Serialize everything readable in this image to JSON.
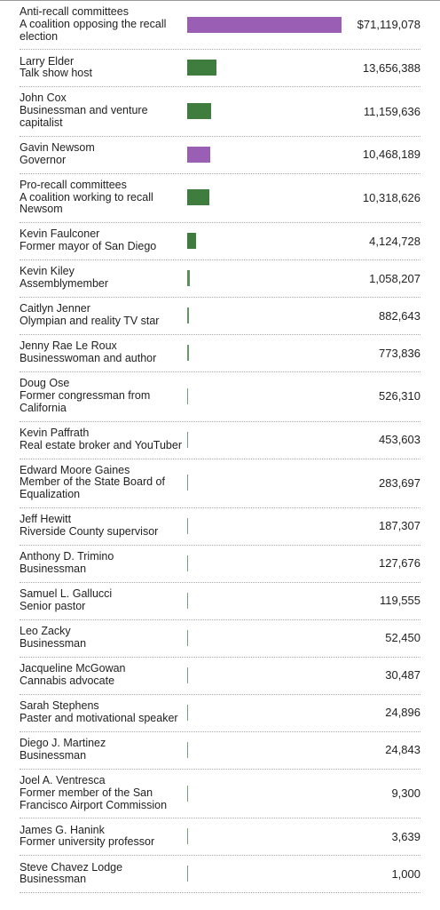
{
  "chart_data": {
    "type": "bar",
    "orientation": "horizontal",
    "categories": [
      "Anti-recall committees",
      "Larry Elder",
      "John Cox",
      "Gavin Newsom",
      "Pro-recall committees",
      "Kevin Faulconer",
      "Kevin Kiley",
      "Caitlyn Jenner",
      "Jenny Rae Le Roux",
      "Doug Ose",
      "Kevin Paffrath",
      "Edward Moore Gaines",
      "Jeff Hewitt",
      "Anthony D. Trimino",
      "Samuel L. Gallucci",
      "Leo Zacky",
      "Jacqueline McGowan",
      "Sarah Stephens",
      "Diego J. Martinez",
      "Joel A. Ventresca",
      "James G. Hanink",
      "Steve Chavez Lodge"
    ],
    "descriptions": [
      "A coalition opposing the recall election",
      "Talk show host",
      "Businessman and venture capitalist",
      "Governor",
      "A coalition working to recall Newsom",
      "Former mayor of San Diego",
      "Assemblymember",
      "Olympian and reality TV star",
      "Businesswoman and author",
      "Former congressman from California",
      "Real estate broker and YouTuber",
      "Member of the State Board of Equalization",
      "Riverside County supervisor",
      "Businessman",
      "Senior pastor",
      "Businessman",
      "Cannabis advocate",
      "Paster and motivational speaker",
      "Businessman",
      "Former member of the San Francisco Airport Commission",
      "Former university professor",
      "Businessman"
    ],
    "values": [
      71119078,
      13656388,
      11159636,
      10468189,
      10318626,
      4124728,
      1058207,
      882643,
      773836,
      526310,
      453603,
      283697,
      187307,
      127676,
      119555,
      52450,
      30487,
      24896,
      24843,
      9300,
      3639,
      1000
    ],
    "value_labels": [
      "$71,119,078",
      "13,656,388",
      "11,159,636",
      "10,468,189",
      "10,318,626",
      "4,124,728",
      "1,058,207",
      "882,643",
      "773,836",
      "526,310",
      "453,603",
      "283,697",
      "187,307",
      "127,676",
      "119,555",
      "52,450",
      "30,487",
      "24,896",
      "24,843",
      "9,300",
      "3,639",
      "1,000"
    ],
    "colors": [
      "#9a5fb4",
      "#3f7d3f",
      "#3f7d3f",
      "#9a5fb4",
      "#3f7d3f",
      "#3f7d3f",
      "#3f7d3f",
      "#3f7d3f",
      "#3f7d3f",
      "#3f7d3f",
      "#3f7d3f",
      "#3f7d3f",
      "#3f7d3f",
      "#3f7d3f",
      "#3f7d3f",
      "#3f7d3f",
      "#3f7d3f",
      "#3f7d3f",
      "#3f7d3f",
      "#3f7d3f",
      "#3f7d3f",
      "#3f7d3f"
    ]
  }
}
